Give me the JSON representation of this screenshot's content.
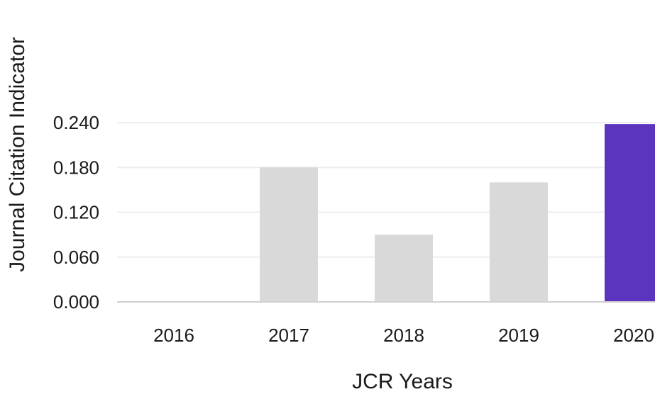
{
  "chart_data": {
    "type": "bar",
    "categories": [
      "2016",
      "2017",
      "2018",
      "2019",
      "2020"
    ],
    "values": [
      0.0,
      0.18,
      0.09,
      0.16,
      0.238
    ],
    "highlight_index": 4,
    "colors": {
      "default": "#d9d9d9",
      "highlight": "#5b35bd",
      "grid": "#eeeeee",
      "baseline": "#d0d0d0"
    },
    "xlabel": "JCR Years",
    "ylabel": "Journal Citation Indicator",
    "ylim": [
      0,
      0.24
    ],
    "yticks": [
      "0.000",
      "0.060",
      "0.120",
      "0.180",
      "0.240"
    ],
    "grid": true,
    "legend": "none"
  }
}
